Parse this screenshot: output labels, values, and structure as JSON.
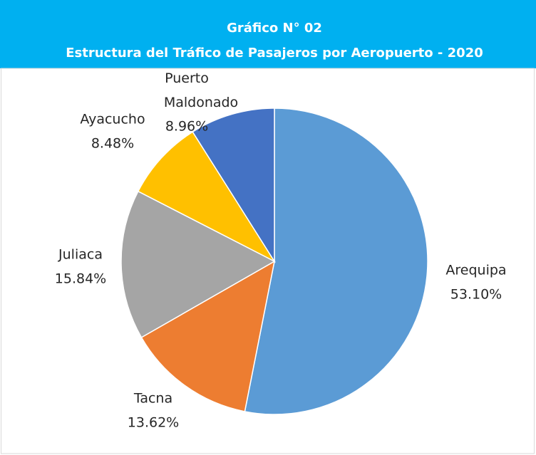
{
  "chart_data": {
    "type": "pie",
    "title": "Gráfico N° 02",
    "subtitle": "Estructura del Tráfico de Pasajeros por Aeropuerto - 2020",
    "categories": [
      "Arequipa",
      "Tacna",
      "Juliaca",
      "Ayacucho",
      "Puerto Maldonado"
    ],
    "values": [
      53.1,
      13.62,
      15.84,
      8.48,
      8.96
    ],
    "value_labels": [
      "53.10%",
      "13.62%",
      "15.84%",
      "8.48%",
      "8.96%"
    ],
    "colors": [
      "#5b9bd5",
      "#ed7d31",
      "#a5a5a5",
      "#ffc000",
      "#4472c4"
    ]
  }
}
